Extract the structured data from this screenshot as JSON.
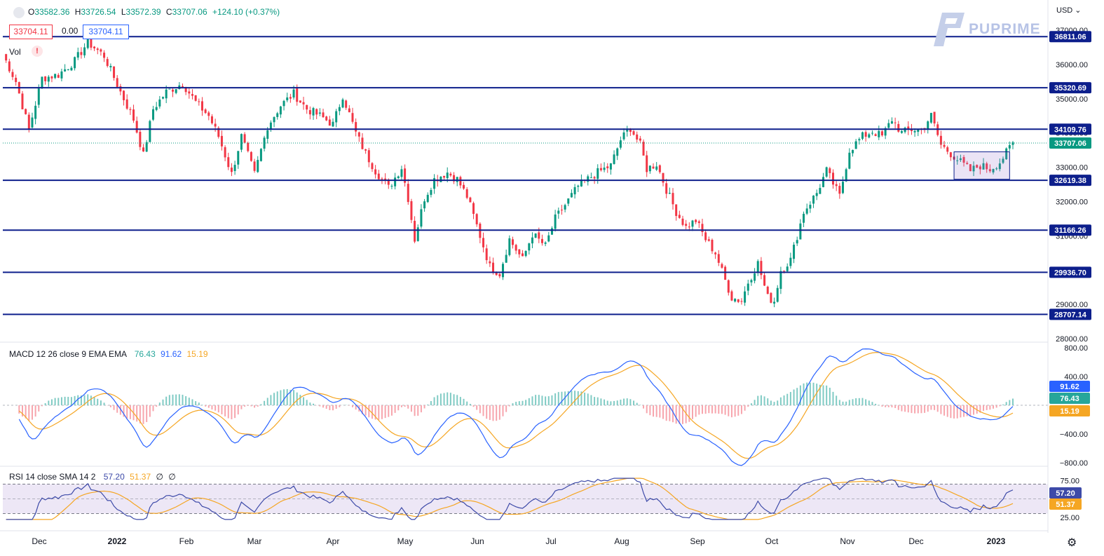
{
  "header": {
    "ohlc": [
      {
        "k": "O",
        "v": "33582.36"
      },
      {
        "k": "H",
        "v": "33726.54"
      },
      {
        "k": "L",
        "v": "33572.39"
      },
      {
        "k": "C",
        "v": "33707.06"
      },
      {
        "k": "",
        "v": "+124.10 (+0.37%)"
      }
    ],
    "sell_price": "33704.11",
    "spread": "0.00",
    "buy_price": "33704.11",
    "volume_label": "Vol",
    "volume_warning": "!",
    "currency": "USD",
    "brand": "PUPRIME"
  },
  "colors": {
    "up": "#089981",
    "down": "#f23645",
    "level": "#0d1f8c",
    "macd": "#2962ff",
    "signal": "#f5a623",
    "rsi": "#3d4aa8",
    "rsi_band": "#ede7f6"
  },
  "chart_data": [
    {
      "type": "candlestick",
      "title": "",
      "ylim": [
        28000,
        37000
      ],
      "y_ticks": [
        28000,
        29000,
        30000,
        31000,
        32000,
        33000,
        34000,
        35000,
        36000,
        37000
      ],
      "y_tick_labels": [
        "28000.00",
        "29000.00",
        "30000.00",
        "31000.00",
        "32000.00",
        "33000.00",
        "34000.00",
        "35000.00",
        "36000.00",
        "37000.00"
      ],
      "x_tick_labels": [
        "Dec",
        "2022",
        "Feb",
        "Mar",
        "Apr",
        "May",
        "Jun",
        "Jul",
        "Aug",
        "Sep",
        "Oct",
        "Nov",
        "Dec",
        "2023"
      ],
      "horizontal_levels": [
        36811.06,
        35320.69,
        34109.76,
        32619.38,
        31166.26,
        29936.7,
        28707.14
      ],
      "level_labels": [
        "36811.06",
        "35320.69",
        "34109.76",
        "32619.38",
        "31166.26",
        "29936.70",
        "28707.14"
      ],
      "last_price": 33707.06,
      "last_price_label": "33707.06",
      "consolidation_range": {
        "high": 33450,
        "low": 32650
      },
      "close_path": [
        [
          0,
          36300
        ],
        [
          4,
          35500
        ],
        [
          8,
          34100
        ],
        [
          12,
          35600
        ],
        [
          17,
          35700
        ],
        [
          22,
          36100
        ],
        [
          26,
          36650
        ],
        [
          31,
          36250
        ],
        [
          36,
          35200
        ],
        [
          40,
          34400
        ],
        [
          43,
          33350
        ],
        [
          46,
          34700
        ],
        [
          50,
          35200
        ],
        [
          55,
          35450
        ],
        [
          59,
          34900
        ],
        [
          63,
          34500
        ],
        [
          66,
          33900
        ],
        [
          70,
          32800
        ],
        [
          73,
          33900
        ],
        [
          77,
          32800
        ],
        [
          81,
          34200
        ],
        [
          85,
          34800
        ],
        [
          89,
          35150
        ],
        [
          93,
          34700
        ],
        [
          97,
          34500
        ],
        [
          101,
          34250
        ],
        [
          104,
          35100
        ],
        [
          108,
          34000
        ],
        [
          111,
          33400
        ],
        [
          114,
          32900
        ],
        [
          118,
          32400
        ],
        [
          122,
          33000
        ],
        [
          124,
          32100
        ],
        [
          126,
          30900
        ],
        [
          129,
          32100
        ],
        [
          132,
          32650
        ],
        [
          136,
          32850
        ],
        [
          139,
          32650
        ],
        [
          142,
          32150
        ],
        [
          145,
          31300
        ],
        [
          149,
          30100
        ],
        [
          152,
          29900
        ],
        [
          155,
          30900
        ],
        [
          159,
          30300
        ],
        [
          162,
          31050
        ],
        [
          166,
          30700
        ],
        [
          169,
          31500
        ],
        [
          172,
          31900
        ],
        [
          176,
          32450
        ],
        [
          179,
          32650
        ],
        [
          182,
          32850
        ],
        [
          186,
          33050
        ],
        [
          189,
          33800
        ],
        [
          192,
          34150
        ],
        [
          195,
          33650
        ],
        [
          197,
          32950
        ],
        [
          200,
          33100
        ],
        [
          203,
          32350
        ],
        [
          206,
          31700
        ],
        [
          209,
          31250
        ],
        [
          212,
          31450
        ],
        [
          215,
          30900
        ],
        [
          218,
          30500
        ],
        [
          221,
          29700
        ],
        [
          223,
          29200
        ],
        [
          226,
          29100
        ],
        [
          228,
          29650
        ],
        [
          231,
          30200
        ],
        [
          234,
          29200
        ],
        [
          236,
          29100
        ],
        [
          238,
          30000
        ],
        [
          241,
          30300
        ],
        [
          245,
          31700
        ],
        [
          249,
          32250
        ],
        [
          252,
          32900
        ],
        [
          256,
          32150
        ],
        [
          259,
          33500
        ],
        [
          263,
          33900
        ],
        [
          266,
          34050
        ],
        [
          269,
          33900
        ],
        [
          272,
          34400
        ],
        [
          275,
          34000
        ],
        [
          278,
          34100
        ],
        [
          281,
          34100
        ],
        [
          284,
          34500
        ],
        [
          287,
          33650
        ],
        [
          290,
          33400
        ],
        [
          293,
          33150
        ],
        [
          296,
          32900
        ],
        [
          299,
          33050
        ],
        [
          302,
          32950
        ],
        [
          305,
          33150
        ],
        [
          309,
          33700
        ]
      ]
    },
    {
      "type": "macd",
      "legend": "MACD 12 26 close 9 EMA EMA",
      "values": {
        "histogram": 76.43,
        "macd": 91.62,
        "signal": 15.19
      },
      "value_labels": {
        "histogram": "76.43",
        "macd": "91.62",
        "signal": "15.19"
      },
      "ylim": [
        -800,
        800
      ],
      "y_ticks": [
        -800,
        -400,
        400,
        800
      ],
      "y_tick_labels": [
        "−800.00",
        "−400.00",
        "400.00",
        "800.00"
      ]
    },
    {
      "type": "rsi",
      "legend": "RSI 14 close SMA 14 2",
      "values": {
        "rsi": 57.2,
        "sma": 51.37
      },
      "value_labels": {
        "rsi": "57.20",
        "sma": "51.37"
      },
      "extra_labels": [
        "∅",
        "∅"
      ],
      "band": [
        30,
        70
      ],
      "ylim": [
        20,
        80
      ],
      "y_ticks": [
        25,
        75
      ],
      "y_tick_labels": [
        "25.00",
        "75.00"
      ]
    }
  ]
}
